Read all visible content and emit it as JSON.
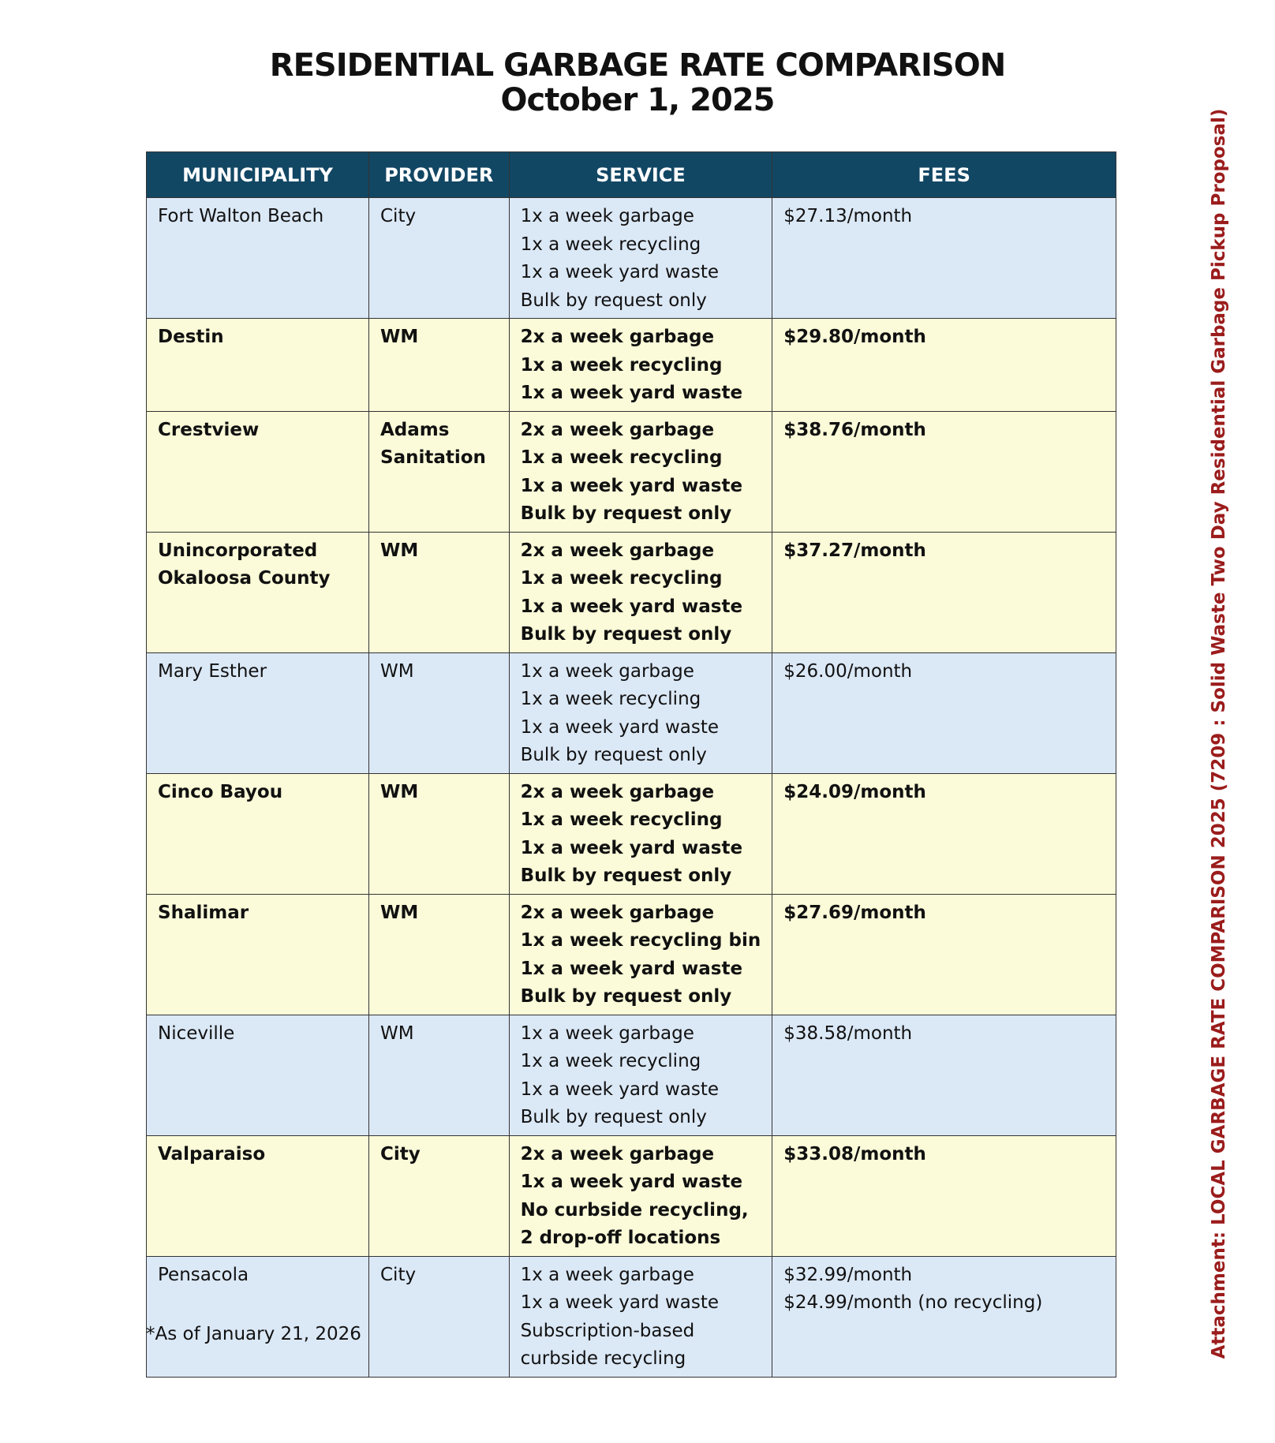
{
  "title": {
    "line1": "RESIDENTIAL GARBAGE RATE COMPARISON",
    "line2": "October 1, 2025"
  },
  "table": {
    "headers": [
      "MUNICIPALITY",
      "PROVIDER",
      "SERVICE",
      "FEES"
    ],
    "rows": [
      {
        "style": "blue",
        "municipality": [
          "Fort Walton Beach"
        ],
        "provider": [
          "City"
        ],
        "service": [
          "1x a week garbage",
          "1x a week recycling",
          "1x a week yard waste",
          "Bulk by request only"
        ],
        "fees": [
          "$27.13/month"
        ]
      },
      {
        "style": "yellow",
        "municipality": [
          "Destin"
        ],
        "provider": [
          "WM"
        ],
        "service": [
          "2x a week garbage",
          "1x a week recycling",
          "1x a week yard waste"
        ],
        "fees": [
          "$29.80/month"
        ]
      },
      {
        "style": "yellow",
        "municipality": [
          "Crestview"
        ],
        "provider": [
          "Adams",
          "Sanitation"
        ],
        "service": [
          "2x a week garbage",
          "1x a week recycling",
          "1x a week yard waste",
          "Bulk by request only"
        ],
        "fees": [
          "$38.76/month"
        ]
      },
      {
        "style": "yellow",
        "municipality": [
          "Unincorporated",
          "Okaloosa County"
        ],
        "provider": [
          "WM"
        ],
        "service": [
          "2x a week garbage",
          "1x a week recycling",
          "1x a week yard waste",
          "Bulk by request only"
        ],
        "fees": [
          "$37.27/month"
        ]
      },
      {
        "style": "blue",
        "municipality": [
          "Mary Esther"
        ],
        "provider": [
          "WM"
        ],
        "service": [
          "1x a week garbage",
          "1x a week recycling",
          "1x a week yard waste",
          "Bulk by request only"
        ],
        "fees": [
          "$26.00/month"
        ]
      },
      {
        "style": "yellow",
        "municipality": [
          "Cinco Bayou"
        ],
        "provider": [
          "WM"
        ],
        "service": [
          "2x a week garbage",
          "1x a week recycling",
          "1x a week yard waste",
          "Bulk by request only"
        ],
        "fees": [
          "$24.09/month"
        ]
      },
      {
        "style": "yellow",
        "municipality": [
          "Shalimar"
        ],
        "provider": [
          "WM"
        ],
        "service": [
          "2x a week garbage",
          "1x a week recycling bin",
          "1x a week yard waste",
          "Bulk by request only"
        ],
        "fees": [
          "$27.69/month"
        ]
      },
      {
        "style": "blue",
        "municipality": [
          "Niceville"
        ],
        "provider": [
          "WM"
        ],
        "service": [
          "1x a week garbage",
          "1x a week recycling",
          "1x a week yard waste",
          "Bulk by request only"
        ],
        "fees": [
          "$38.58/month"
        ]
      },
      {
        "style": "yellow",
        "municipality": [
          "Valparaiso"
        ],
        "provider": [
          "City"
        ],
        "service": [
          "2x a week garbage",
          "1x a week yard waste",
          "No curbside recycling,",
          "2 drop-off locations"
        ],
        "fees": [
          "$33.08/month"
        ]
      },
      {
        "style": "blue",
        "municipality": [
          "Pensacola"
        ],
        "provider": [
          "City"
        ],
        "service": [
          "1x a week garbage",
          "1x a week yard waste",
          "Subscription-based",
          "curbside recycling"
        ],
        "fees": [
          "$32.99/month",
          "$24.99/month (no recycling)"
        ]
      }
    ]
  },
  "footnote": "*As of January 21, 2026",
  "attachment": "Attachment: LOCAL GARBAGE RATE COMPARISON 2025  (7209 : Solid Waste Two Day Residential Garbage Pickup Proposal)",
  "colors": {
    "header_bg": "#124764",
    "row_blue": "#dbe8f6",
    "row_yellow": "#fbfbd9",
    "attachment_text": "#9b1c1c"
  }
}
